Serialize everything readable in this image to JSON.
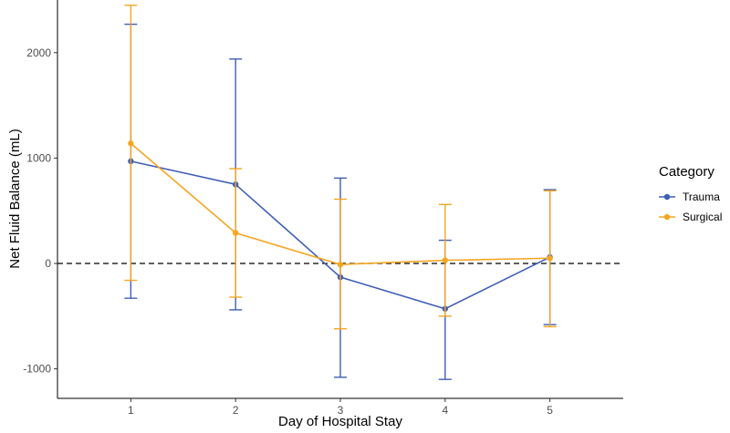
{
  "chart_data": {
    "type": "line",
    "xlabel": "Day of Hospital Stay",
    "ylabel": "Net Fluid Balance (mL)",
    "x": [
      1,
      2,
      3,
      4,
      5
    ],
    "x_ticks": [
      1,
      2,
      3,
      4,
      5
    ],
    "y_ticks": [
      -1000,
      0,
      1000,
      2000
    ],
    "xlim": [
      0.3,
      5.7
    ],
    "ylim": [
      -1280,
      2500
    ],
    "reference_line": {
      "y": 0,
      "style": "dashed"
    },
    "legend": {
      "title": "Category",
      "position": "right"
    },
    "grid": false,
    "series": [
      {
        "name": "Trauma",
        "color": "#3f5fb5",
        "values": [
          970,
          750,
          -130,
          -430,
          60
        ],
        "error_low": [
          -330,
          -440,
          -1080,
          -1100,
          -580
        ],
        "error_high": [
          2270,
          1940,
          810,
          220,
          700
        ]
      },
      {
        "name": "Surgical",
        "color": "#f5a623",
        "values": [
          1140,
          290,
          -10,
          30,
          50
        ],
        "error_low": [
          -160,
          -320,
          -620,
          -500,
          -600
        ],
        "error_high": [
          2450,
          900,
          610,
          560,
          690
        ]
      }
    ]
  }
}
